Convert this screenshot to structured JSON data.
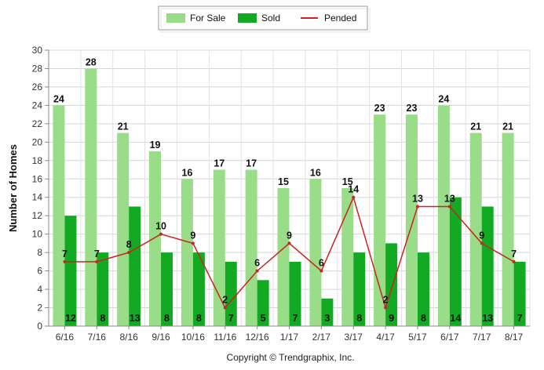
{
  "chart_data": {
    "type": "bar",
    "ylabel": "Number of Homes",
    "ylim": [
      0,
      30
    ],
    "yticks": [
      0,
      2,
      4,
      6,
      8,
      10,
      12,
      14,
      16,
      18,
      20,
      22,
      24,
      26,
      28,
      30
    ],
    "grid": true,
    "legend_position": "top-center",
    "categories": [
      "6/16",
      "7/16",
      "8/16",
      "9/16",
      "10/16",
      "11/16",
      "12/16",
      "1/17",
      "2/17",
      "3/17",
      "4/17",
      "5/17",
      "6/17",
      "7/17",
      "8/17"
    ],
    "series": [
      {
        "name": "For Sale",
        "kind": "bar",
        "color": "#99dd88",
        "values": [
          24,
          28,
          21,
          19,
          16,
          17,
          17,
          15,
          16,
          15,
          23,
          23,
          24,
          21,
          21
        ]
      },
      {
        "name": "Sold",
        "kind": "bar",
        "color": "#11aa22",
        "values": [
          12,
          8,
          13,
          8,
          8,
          7,
          5,
          7,
          3,
          8,
          9,
          8,
          14,
          13,
          7
        ]
      },
      {
        "name": "Pended",
        "kind": "line",
        "color": "#cc2222",
        "values": [
          7,
          7,
          8,
          10,
          9,
          2,
          6,
          9,
          6,
          14,
          2,
          13,
          13,
          9,
          7
        ]
      }
    ]
  },
  "copyright": "Copyright © Trendgraphix, Inc."
}
